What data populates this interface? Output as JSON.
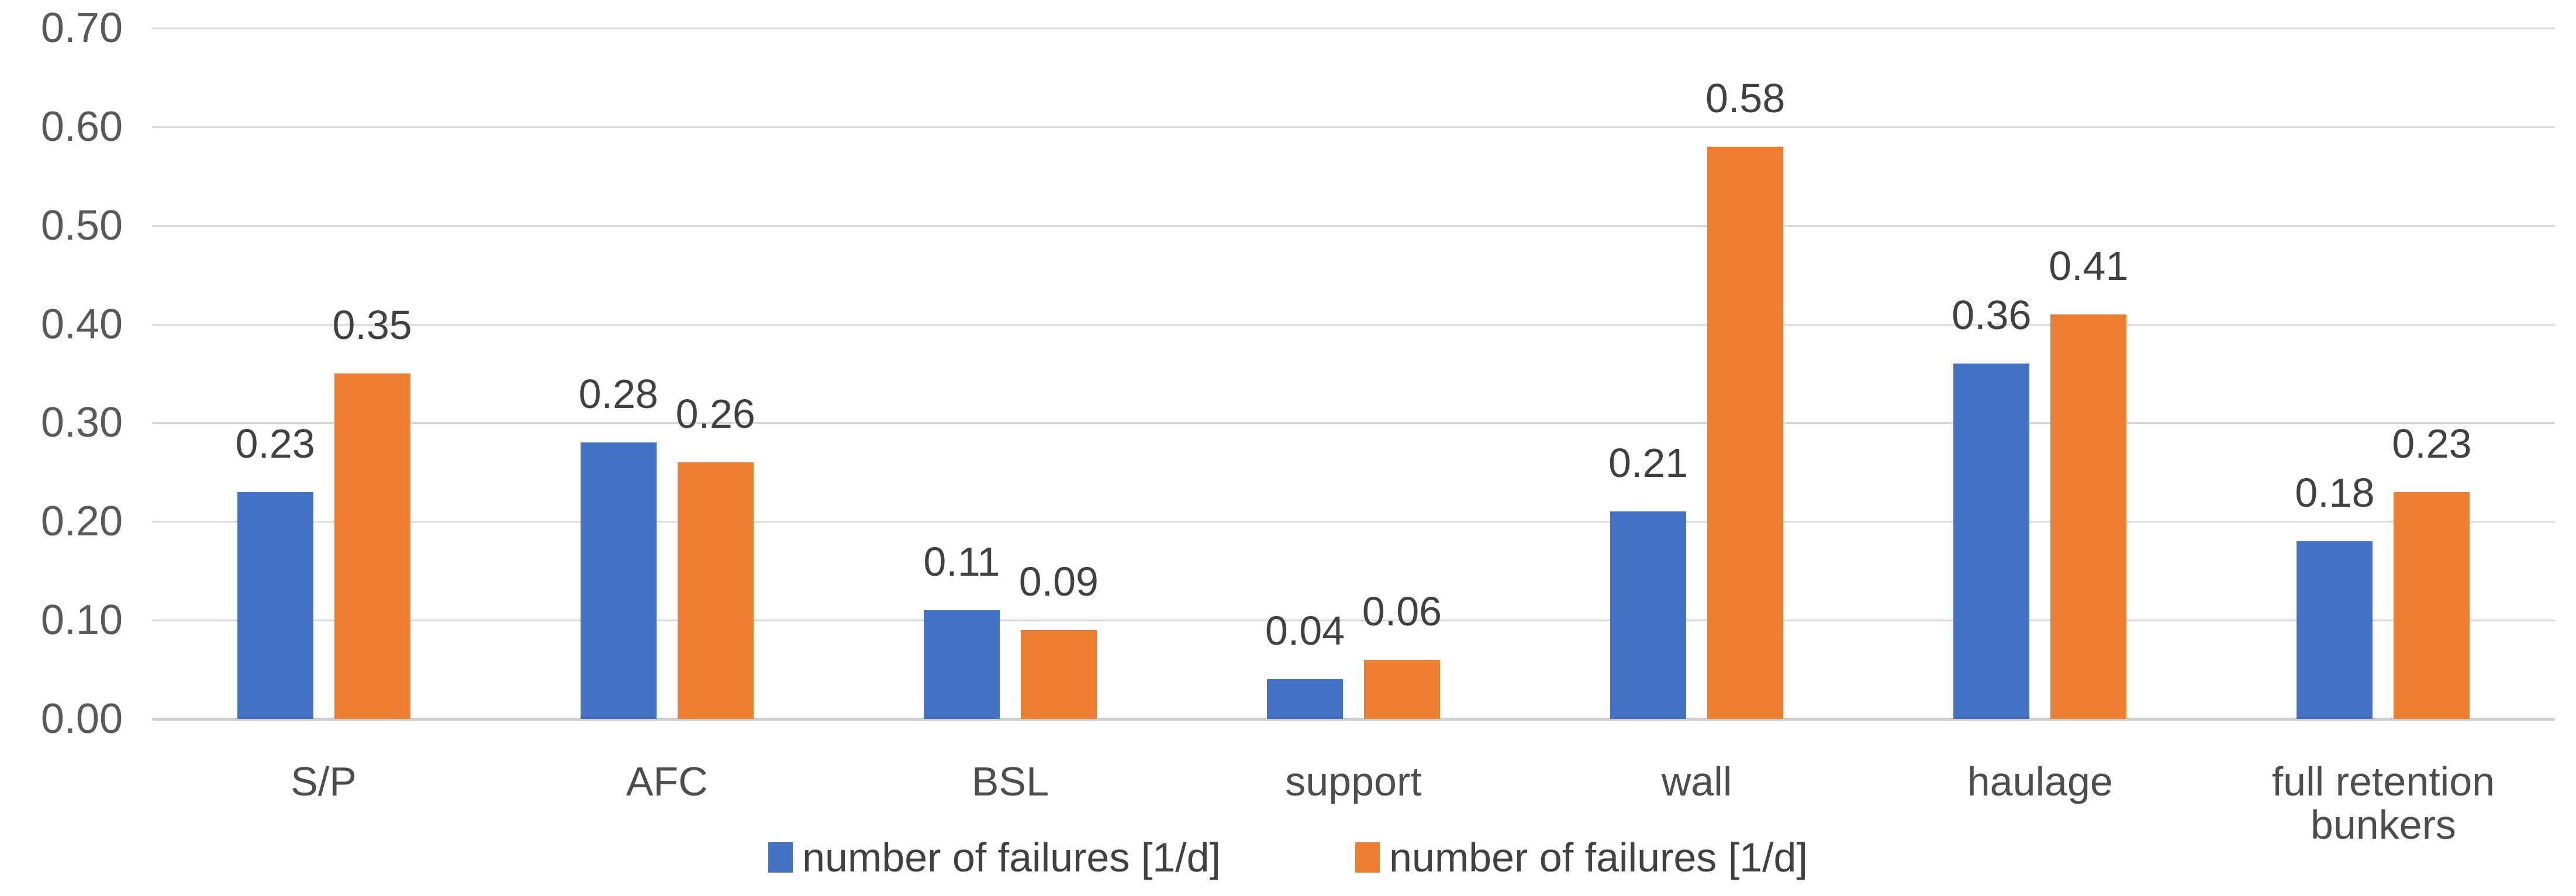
{
  "chart_data": {
    "type": "bar",
    "categories": [
      "S/P",
      "AFC",
      "BSL",
      "support",
      "wall",
      "haulage",
      "full retention bunkers"
    ],
    "series": [
      {
        "name": "number of failures [1/d]",
        "color": "#4472C4",
        "values": [
          0.23,
          0.28,
          0.11,
          0.04,
          0.21,
          0.36,
          0.18
        ]
      },
      {
        "name": "number of failures [1/d]",
        "color": "#ED7D31",
        "values": [
          0.35,
          0.26,
          0.09,
          0.06,
          0.58,
          0.41,
          0.23
        ]
      }
    ],
    "ylim": [
      0,
      0.7
    ],
    "ytick_step": 0.1,
    "ytick_labels": [
      "0.00",
      "0.10",
      "0.20",
      "0.30",
      "0.40",
      "0.50",
      "0.60",
      "0.70"
    ],
    "value_labels": [
      [
        "0.23",
        "0.28",
        "0.11",
        "0.04",
        "0.21",
        "0.36",
        "0.18"
      ],
      [
        "0.35",
        "0.26",
        "0.09",
        "0.06",
        "0.58",
        "0.41",
        "0.23"
      ]
    ],
    "grid": true,
    "legend_position": "bottom",
    "colors": {
      "series_blue": "#4472C4",
      "series_orange": "#ED7D31",
      "gridline": "#D9D9D9",
      "axis_line": "#CFCFCF",
      "tick_text": "#595959",
      "label_text": "#414141",
      "background": "#FFFFFF"
    }
  }
}
